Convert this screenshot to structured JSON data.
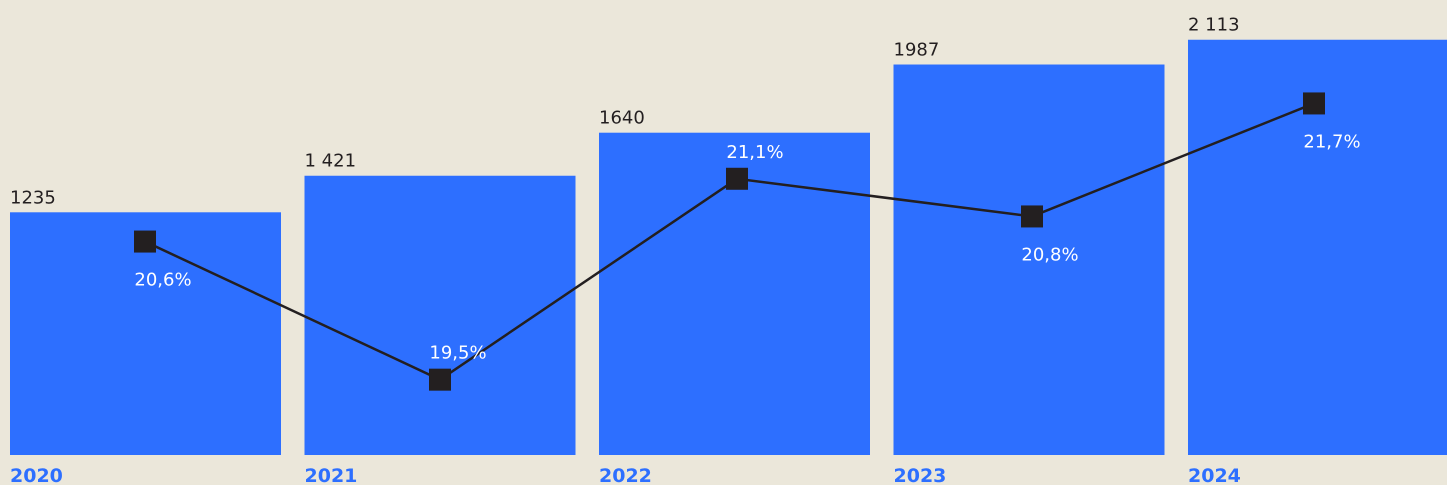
{
  "chart_data": {
    "type": "bar",
    "categories": [
      "2020",
      "2021",
      "2022",
      "2023",
      "2024"
    ],
    "series": [
      {
        "type": "bar",
        "color": "#2d6fff",
        "values": [
          1235,
          1421,
          1640,
          1987,
          2113
        ],
        "value_labels": [
          "1235",
          "1 421",
          "1640",
          "1987",
          "2 113"
        ]
      },
      {
        "type": "line",
        "color": "#231f20",
        "axis": "y2",
        "values": [
          20.6,
          19.5,
          21.1,
          20.8,
          21.7
        ],
        "value_labels": [
          "20,6%",
          "19,5%",
          "21,1%",
          "20,8%",
          "21,7%"
        ]
      }
    ],
    "ylim": [
      0,
      2300
    ],
    "y2lim": [
      18.9,
      22.5
    ]
  }
}
